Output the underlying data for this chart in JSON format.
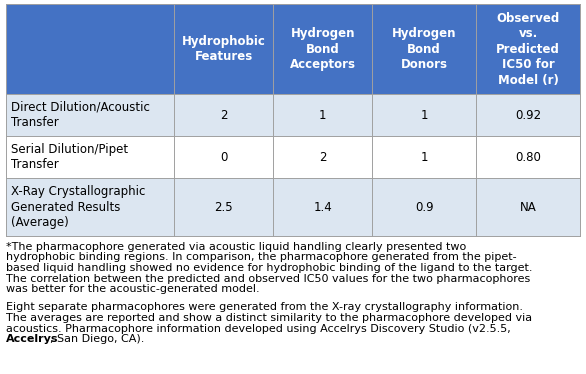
{
  "header_bg": "#4472c4",
  "header_text_color": "#ffffff",
  "row_bg_light": "#dce6f1",
  "row_bg_white": "#ffffff",
  "border_color": "#a0a0a0",
  "text_color": "#000000",
  "col_headers": [
    "Hydrophobic\nFeatures",
    "Hydrogen\nBond\nAcceptors",
    "Hydrogen\nBond\nDonors",
    "Observed\nvs.\nPredicted\nIC50 for\nModel (r)"
  ],
  "row_labels": [
    "Direct Dilution/Acoustic\nTransfer",
    "Serial Dilution/Pipet\nTransfer",
    "X-Ray Crystallographic\nGenerated Results\n(Average)"
  ],
  "table_data": [
    [
      "2",
      "1",
      "1",
      "0.92"
    ],
    [
      "0",
      "2",
      "1",
      "0.80"
    ],
    [
      "2.5",
      "1.4",
      "0.9",
      "NA"
    ]
  ],
  "row_bg_colors": [
    "#dce6f1",
    "#ffffff",
    "#dce6f1"
  ],
  "footnote1_lines": [
    "*The pharmacophore generated via acoustic liquid handling clearly presented two",
    "hydrophobic binding regions. In comparison, the pharmacophore generated from the pipet-",
    "based liquid handling showed no evidence for hydrophobic binding of the ligand to the target.",
    "The correlation between the predicted and observed IC50 values for the two pharmacophores",
    "was better for the acoustic-generated model."
  ],
  "footnote2_lines_plain": [
    "Eight separate pharmacophores were generated from the X-ray crystallography information.",
    "The averages are reported and show a distinct similarity to the pharmacophore developed via",
    "acoustics. Pharmacophore information developed using Accelrys Discovery Studio (v2.5.5,"
  ],
  "footnote2_line4_before_bold": "",
  "footnote2_bold": "Accelrys",
  "footnote2_line4_after_bold": ", San Diego, CA).",
  "font_size_header": 8.5,
  "font_size_body": 8.5,
  "font_size_footnote": 8.0
}
